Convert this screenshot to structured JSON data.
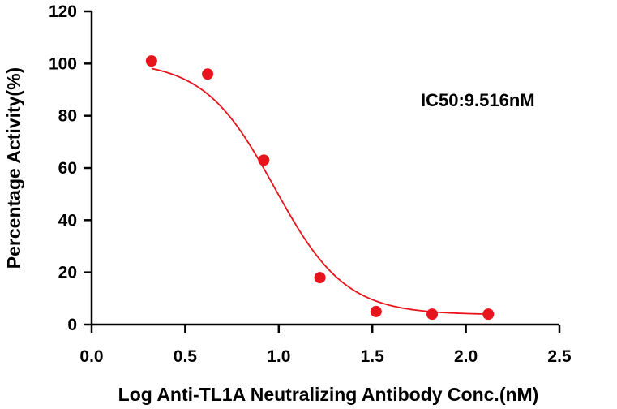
{
  "chart_data": {
    "type": "scatter",
    "title": "",
    "xlabel": "Log Anti-TL1A Neutralizing Antibody Conc.(nM)",
    "ylabel": "Percentage Activity(%)",
    "xlim": [
      0.0,
      2.5
    ],
    "ylim": [
      0,
      120
    ],
    "x_ticks": [
      0.0,
      0.5,
      1.0,
      1.5,
      2.0,
      2.5
    ],
    "x_tick_labels": [
      "0.0",
      "0.5",
      "1.0",
      "1.5",
      "2.0",
      "2.5"
    ],
    "y_ticks": [
      0,
      20,
      40,
      60,
      80,
      100,
      120
    ],
    "y_tick_labels": [
      "0",
      "20",
      "40",
      "60",
      "80",
      "100",
      "120"
    ],
    "grid": false,
    "series": [
      {
        "marker_color": "#e8141c",
        "x": [
          0.32,
          0.62,
          0.92,
          1.22,
          1.52,
          1.82,
          2.12
        ],
        "y": [
          101,
          96,
          63,
          18,
          5,
          4,
          4
        ]
      }
    ],
    "fit_curve": {
      "model": "four-parameter logistic",
      "top": 101,
      "bottom": 3.8,
      "log_ic50": 0.978,
      "hill_slope": -2.3,
      "color": "#e8141c"
    },
    "annotation": "IC50:9.516nM"
  }
}
